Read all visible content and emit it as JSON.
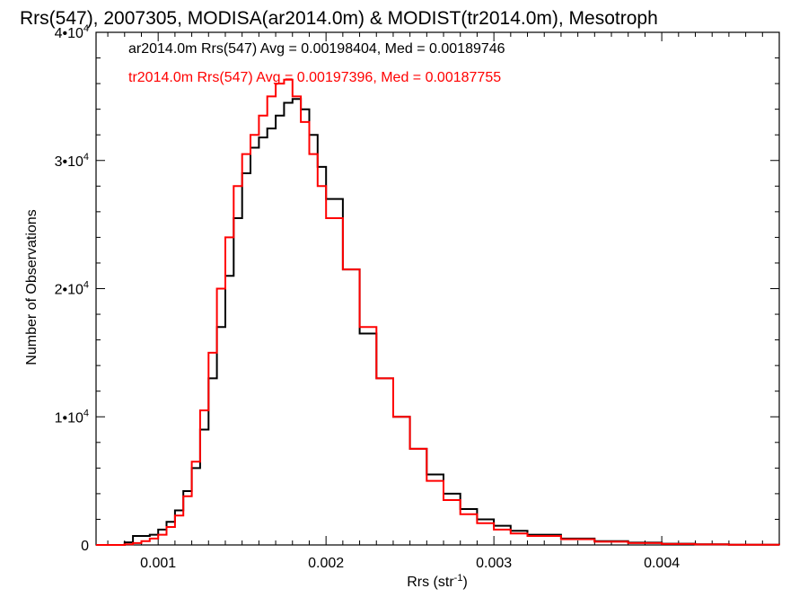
{
  "colors": {
    "ar2014": "#000000",
    "tr2014": "#ff0000",
    "background": "#ffffff",
    "axes": "#000000"
  },
  "chart_data": {
    "type": "line",
    "title": "Rrs(547), 2007305, MODISA(ar2014.0m) & MODIST(tr2014.0m), Mesotroph",
    "xlabel_base": "Rrs (str",
    "xlabel_sup": "-1",
    "xlabel_close": ")",
    "ylabel": "Number of Observations",
    "xlim": [
      0.00063,
      0.0047
    ],
    "ylim": [
      0,
      40000
    ],
    "xticks": [
      {
        "value": 0.001,
        "label": "0.001"
      },
      {
        "value": 0.002,
        "label": "0.002"
      },
      {
        "value": 0.003,
        "label": "0.003"
      },
      {
        "value": 0.004,
        "label": "0.004"
      }
    ],
    "yticks": [
      {
        "value": 0,
        "mant": "0",
        "exp": ""
      },
      {
        "value": 10000,
        "mant": "1•10",
        "exp": "4"
      },
      {
        "value": 20000,
        "mant": "2•10",
        "exp": "4"
      },
      {
        "value": 30000,
        "mant": "3•10",
        "exp": "4"
      },
      {
        "value": 40000,
        "mant": "4•10",
        "exp": "4"
      }
    ],
    "grid": false,
    "legend_position": "top-left",
    "series": [
      {
        "name": "ar2014.0m Rrs(547) Avg = 0.00198404, Med = 0.00189746",
        "color": "#000000",
        "x": [
          0.00063,
          0.00075,
          0.0008,
          0.00085,
          0.0009,
          0.00095,
          0.001,
          0.00105,
          0.0011,
          0.00115,
          0.0012,
          0.00125,
          0.0013,
          0.00135,
          0.0014,
          0.00145,
          0.0015,
          0.00155,
          0.0016,
          0.00165,
          0.0017,
          0.00175,
          0.0018,
          0.00185,
          0.0019,
          0.00195,
          0.002,
          0.0021,
          0.0022,
          0.0023,
          0.0024,
          0.0025,
          0.0026,
          0.0027,
          0.0028,
          0.0029,
          0.003,
          0.0031,
          0.0032,
          0.0034,
          0.0036,
          0.0038,
          0.004,
          0.0042,
          0.0044,
          0.0047
        ],
        "y": [
          0,
          0,
          200,
          700,
          700,
          800,
          1200,
          1800,
          2700,
          4200,
          6000,
          9000,
          13000,
          17000,
          21000,
          25500,
          29000,
          31000,
          31800,
          32500,
          33500,
          34500,
          34800,
          34000,
          32000,
          29500,
          27000,
          21500,
          16500,
          13000,
          10000,
          7500,
          5500,
          4000,
          2800,
          2000,
          1500,
          1100,
          800,
          500,
          300,
          180,
          100,
          50,
          20,
          0
        ]
      },
      {
        "name": "tr2014.0m Rrs(547) Avg = 0.00197396, Med = 0.00187755",
        "color": "#ff0000",
        "x": [
          0.00063,
          0.00075,
          0.0008,
          0.00085,
          0.0009,
          0.00095,
          0.001,
          0.00105,
          0.0011,
          0.00115,
          0.0012,
          0.00125,
          0.0013,
          0.00135,
          0.0014,
          0.00145,
          0.0015,
          0.00155,
          0.0016,
          0.00165,
          0.0017,
          0.00175,
          0.0018,
          0.00185,
          0.0019,
          0.00195,
          0.002,
          0.0021,
          0.0022,
          0.0023,
          0.0024,
          0.0025,
          0.0026,
          0.0027,
          0.0028,
          0.0029,
          0.003,
          0.0031,
          0.0032,
          0.0034,
          0.0036,
          0.0038,
          0.004,
          0.0042,
          0.0044,
          0.0047
        ],
        "y": [
          0,
          0,
          50,
          150,
          300,
          500,
          800,
          1400,
          2300,
          3800,
          6500,
          10500,
          15000,
          20000,
          24000,
          28000,
          30500,
          32000,
          33500,
          35000,
          36000,
          36300,
          35000,
          33000,
          30500,
          28000,
          25500,
          21500,
          17000,
          13000,
          10000,
          7500,
          5000,
          3500,
          2400,
          1700,
          1200,
          900,
          700,
          450,
          250,
          150,
          80,
          40,
          15,
          0
        ]
      }
    ]
  }
}
